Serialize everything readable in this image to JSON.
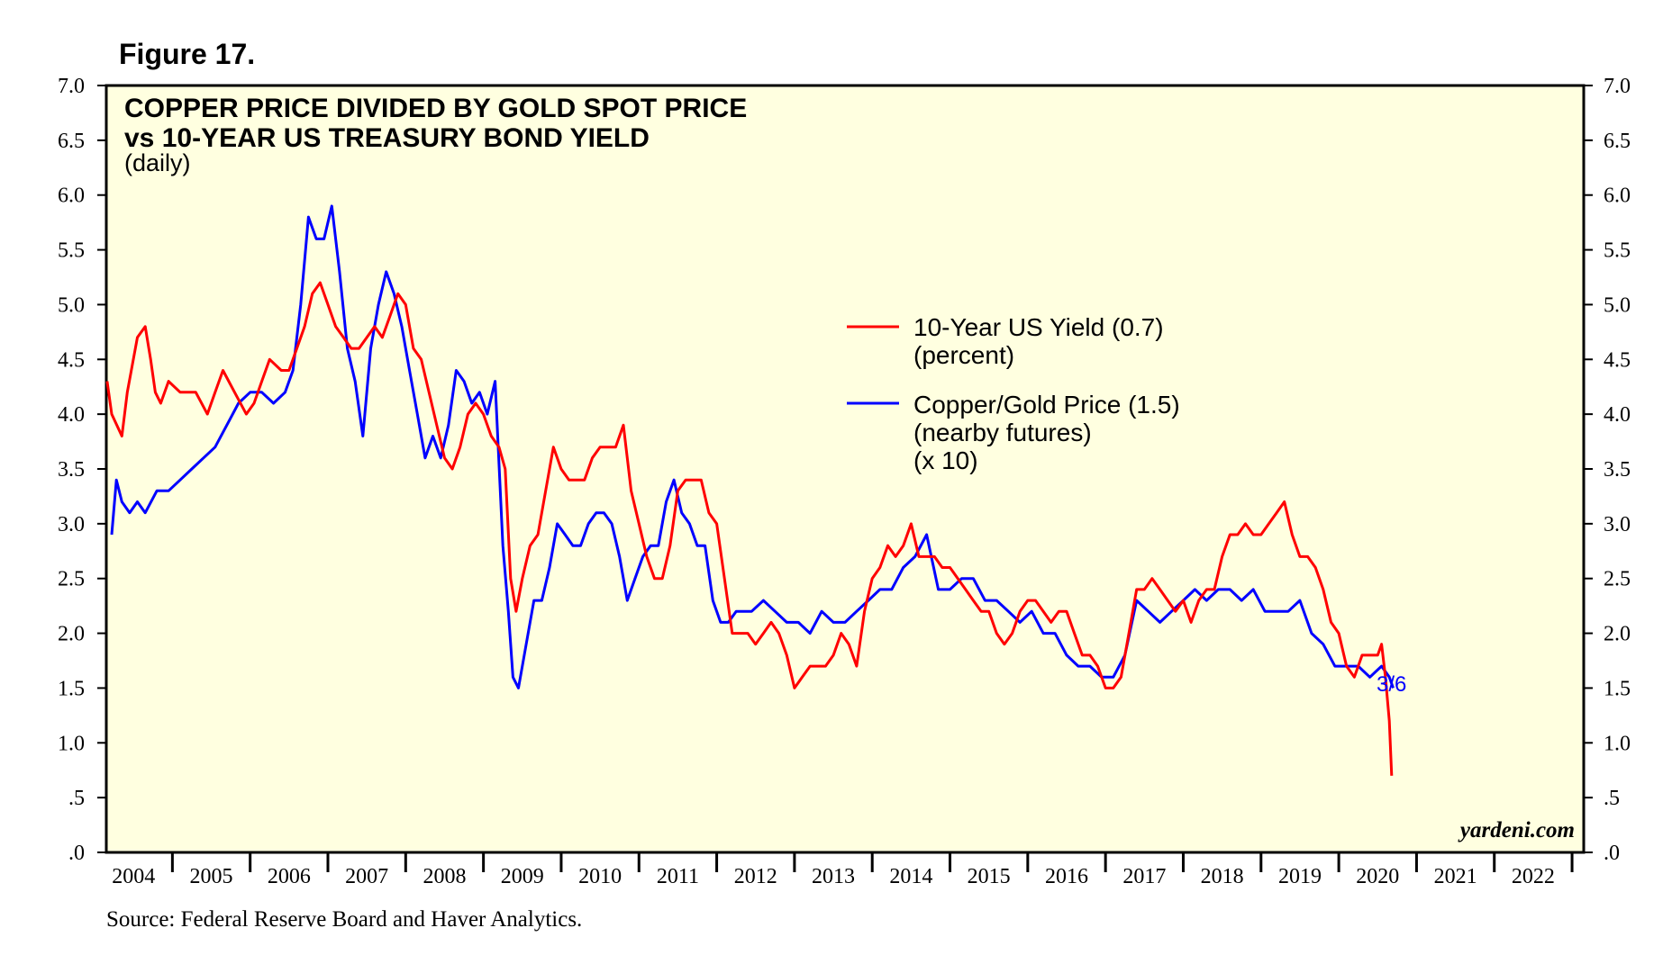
{
  "figure": {
    "label": "Figure 17."
  },
  "source": "Source: Federal Reserve Board and Haver Analytics.",
  "watermark": "yardeni.com",
  "colors": {
    "background": "#FFFFE0",
    "yield": "#FF0000",
    "copper_gold": "#0000FF"
  },
  "chart_data": {
    "type": "line",
    "title": "COPPER PRICE DIVIDED BY GOLD SPOT PRICE",
    "title_line2": "vs 10-YEAR US TREASURY BOND YIELD",
    "subtitle": "(daily)",
    "xlabel": "",
    "ylabel": "",
    "ylim": [
      0,
      7
    ],
    "xlim": [
      2003.65,
      2022.65
    ],
    "grid": false,
    "legend_position": "top-center",
    "y_ticks": [
      ".0",
      ".5",
      "1.0",
      "1.5",
      "2.0",
      "2.5",
      "3.0",
      "3.5",
      "4.0",
      "4.5",
      "5.0",
      "5.5",
      "6.0",
      "6.5",
      "7.0"
    ],
    "x_ticks": [
      "2004",
      "2005",
      "2006",
      "2007",
      "2008",
      "2009",
      "2010",
      "2011",
      "2012",
      "2013",
      "2014",
      "2015",
      "2016",
      "2017",
      "2018",
      "2019",
      "2020",
      "2021",
      "2022"
    ],
    "series": [
      {
        "name": "10-Year US Yield (0.7)",
        "name_line2": "(percent)",
        "color": "#FF0000",
        "x": [
          2003.66,
          2003.72,
          2003.85,
          2003.92,
          2004.05,
          2004.15,
          2004.22,
          2004.28,
          2004.35,
          2004.45,
          2004.6,
          2004.8,
          2004.95,
          2005.05,
          2005.15,
          2005.3,
          2005.45,
          2005.55,
          2005.65,
          2005.75,
          2005.9,
          2006.0,
          2006.1,
          2006.2,
          2006.3,
          2006.4,
          2006.5,
          2006.6,
          2006.7,
          2006.8,
          2006.9,
          2007.0,
          2007.1,
          2007.2,
          2007.3,
          2007.4,
          2007.5,
          2007.6,
          2007.7,
          2007.8,
          2007.9,
          2008.0,
          2008.1,
          2008.2,
          2008.3,
          2008.4,
          2008.5,
          2008.6,
          2008.7,
          2008.78,
          2008.85,
          2008.92,
          2009.0,
          2009.1,
          2009.2,
          2009.3,
          2009.4,
          2009.5,
          2009.6,
          2009.7,
          2009.8,
          2009.9,
          2010.0,
          2010.1,
          2010.2,
          2010.3,
          2010.4,
          2010.5,
          2010.6,
          2010.7,
          2010.8,
          2010.9,
          2011.0,
          2011.1,
          2011.2,
          2011.3,
          2011.4,
          2011.5,
          2011.6,
          2011.7,
          2011.8,
          2011.9,
          2012.0,
          2012.1,
          2012.2,
          2012.3,
          2012.4,
          2012.5,
          2012.6,
          2012.7,
          2012.8,
          2012.9,
          2013.0,
          2013.1,
          2013.2,
          2013.3,
          2013.4,
          2013.5,
          2013.6,
          2013.7,
          2013.8,
          2013.9,
          2014.0,
          2014.1,
          2014.2,
          2014.3,
          2014.4,
          2014.5,
          2014.6,
          2014.7,
          2014.8,
          2014.9,
          2015.0,
          2015.1,
          2015.2,
          2015.3,
          2015.4,
          2015.5,
          2015.6,
          2015.7,
          2015.8,
          2015.9,
          2016.0,
          2016.1,
          2016.2,
          2016.3,
          2016.4,
          2016.5,
          2016.6,
          2016.7,
          2016.8,
          2016.9,
          2017.0,
          2017.1,
          2017.2,
          2017.3,
          2017.4,
          2017.5,
          2017.6,
          2017.7,
          2017.8,
          2017.9,
          2018.0,
          2018.1,
          2018.2,
          2018.3,
          2018.4,
          2018.5,
          2018.6,
          2018.7,
          2018.8,
          2018.9,
          2019.0,
          2019.1,
          2019.2,
          2019.3,
          2019.4,
          2019.5,
          2019.6,
          2019.7,
          2019.8,
          2019.9,
          2020.0,
          2020.05,
          2020.1,
          2020.15,
          2020.18
        ],
        "values": [
          4.3,
          4.0,
          3.8,
          4.2,
          4.7,
          4.8,
          4.5,
          4.2,
          4.1,
          4.3,
          4.2,
          4.2,
          4.0,
          4.2,
          4.4,
          4.2,
          4.0,
          4.1,
          4.3,
          4.5,
          4.4,
          4.4,
          4.6,
          4.8,
          5.1,
          5.2,
          5.0,
          4.8,
          4.7,
          4.6,
          4.6,
          4.7,
          4.8,
          4.7,
          4.9,
          5.1,
          5.0,
          4.6,
          4.5,
          4.2,
          3.9,
          3.6,
          3.5,
          3.7,
          4.0,
          4.1,
          4.0,
          3.8,
          3.7,
          3.5,
          2.5,
          2.2,
          2.5,
          2.8,
          2.9,
          3.3,
          3.7,
          3.5,
          3.4,
          3.4,
          3.4,
          3.6,
          3.7,
          3.7,
          3.7,
          3.9,
          3.3,
          3.0,
          2.7,
          2.5,
          2.5,
          2.8,
          3.3,
          3.4,
          3.4,
          3.4,
          3.1,
          3.0,
          2.5,
          2.0,
          2.0,
          2.0,
          1.9,
          2.0,
          2.1,
          2.0,
          1.8,
          1.5,
          1.6,
          1.7,
          1.7,
          1.7,
          1.8,
          2.0,
          1.9,
          1.7,
          2.2,
          2.5,
          2.6,
          2.8,
          2.7,
          2.8,
          3.0,
          2.7,
          2.7,
          2.7,
          2.6,
          2.6,
          2.5,
          2.4,
          2.3,
          2.2,
          2.2,
          2.0,
          1.9,
          2.0,
          2.2,
          2.3,
          2.3,
          2.2,
          2.1,
          2.2,
          2.2,
          2.0,
          1.8,
          1.8,
          1.7,
          1.5,
          1.5,
          1.6,
          2.0,
          2.4,
          2.4,
          2.5,
          2.4,
          2.3,
          2.2,
          2.3,
          2.1,
          2.3,
          2.4,
          2.4,
          2.7,
          2.9,
          2.9,
          3.0,
          2.9,
          2.9,
          3.0,
          3.1,
          3.2,
          2.9,
          2.7,
          2.7,
          2.6,
          2.4,
          2.1,
          2.0,
          1.7,
          1.6,
          1.8,
          1.8,
          1.8,
          1.9,
          1.6,
          1.2,
          0.7
        ]
      },
      {
        "name": "Copper/Gold Price (1.5)",
        "name_line2": "(nearby futures)",
        "name_line3": "(x 10)",
        "end_label": "3/6",
        "color": "#0000FF",
        "x": [
          2003.72,
          2003.78,
          2003.85,
          2003.95,
          2004.05,
          2004.15,
          2004.3,
          2004.45,
          2004.6,
          2004.75,
          2004.9,
          2005.05,
          2005.2,
          2005.35,
          2005.5,
          2005.65,
          2005.8,
          2005.95,
          2006.05,
          2006.15,
          2006.25,
          2006.35,
          2006.45,
          2006.55,
          2006.65,
          2006.75,
          2006.85,
          2006.95,
          2007.05,
          2007.15,
          2007.25,
          2007.35,
          2007.45,
          2007.55,
          2007.65,
          2007.75,
          2007.85,
          2007.95,
          2008.05,
          2008.15,
          2008.25,
          2008.35,
          2008.45,
          2008.55,
          2008.65,
          2008.75,
          2008.82,
          2008.88,
          2008.95,
          2009.05,
          2009.15,
          2009.25,
          2009.35,
          2009.45,
          2009.55,
          2009.65,
          2009.75,
          2009.85,
          2009.95,
          2010.05,
          2010.15,
          2010.25,
          2010.35,
          2010.45,
          2010.55,
          2010.65,
          2010.75,
          2010.85,
          2010.95,
          2011.05,
          2011.15,
          2011.25,
          2011.35,
          2011.45,
          2011.55,
          2011.65,
          2011.75,
          2011.85,
          2011.95,
          2012.1,
          2012.25,
          2012.4,
          2012.55,
          2012.7,
          2012.85,
          2013.0,
          2013.15,
          2013.3,
          2013.45,
          2013.6,
          2013.75,
          2013.9,
          2014.05,
          2014.2,
          2014.35,
          2014.5,
          2014.65,
          2014.8,
          2014.95,
          2015.1,
          2015.25,
          2015.4,
          2015.55,
          2015.7,
          2015.85,
          2016.0,
          2016.15,
          2016.3,
          2016.45,
          2016.6,
          2016.75,
          2016.9,
          2017.05,
          2017.2,
          2017.35,
          2017.5,
          2017.65,
          2017.8,
          2017.95,
          2018.1,
          2018.25,
          2018.4,
          2018.55,
          2018.7,
          2018.85,
          2019.0,
          2019.15,
          2019.3,
          2019.45,
          2019.6,
          2019.75,
          2019.9,
          2020.05,
          2020.15,
          2020.2
        ],
        "values": [
          2.9,
          3.4,
          3.2,
          3.1,
          3.2,
          3.1,
          3.3,
          3.3,
          3.4,
          3.5,
          3.6,
          3.7,
          3.9,
          4.1,
          4.2,
          4.2,
          4.1,
          4.2,
          4.4,
          5.0,
          5.8,
          5.6,
          5.6,
          5.9,
          5.3,
          4.6,
          4.3,
          3.8,
          4.6,
          5.0,
          5.3,
          5.1,
          4.8,
          4.4,
          4.0,
          3.6,
          3.8,
          3.6,
          3.9,
          4.4,
          4.3,
          4.1,
          4.2,
          4.0,
          4.3,
          2.8,
          2.2,
          1.6,
          1.5,
          1.9,
          2.3,
          2.3,
          2.6,
          3.0,
          2.9,
          2.8,
          2.8,
          3.0,
          3.1,
          3.1,
          3.0,
          2.7,
          2.3,
          2.5,
          2.7,
          2.8,
          2.8,
          3.2,
          3.4,
          3.1,
          3.0,
          2.8,
          2.8,
          2.3,
          2.1,
          2.1,
          2.2,
          2.2,
          2.2,
          2.3,
          2.2,
          2.1,
          2.1,
          2.0,
          2.2,
          2.1,
          2.1,
          2.2,
          2.3,
          2.4,
          2.4,
          2.6,
          2.7,
          2.9,
          2.4,
          2.4,
          2.5,
          2.5,
          2.3,
          2.3,
          2.2,
          2.1,
          2.2,
          2.0,
          2.0,
          1.8,
          1.7,
          1.7,
          1.6,
          1.6,
          1.8,
          2.3,
          2.2,
          2.1,
          2.2,
          2.3,
          2.4,
          2.3,
          2.4,
          2.4,
          2.3,
          2.4,
          2.2,
          2.2,
          2.2,
          2.3,
          2.0,
          1.9,
          1.7,
          1.7,
          1.7,
          1.6,
          1.7,
          1.6,
          1.5
        ]
      }
    ]
  }
}
